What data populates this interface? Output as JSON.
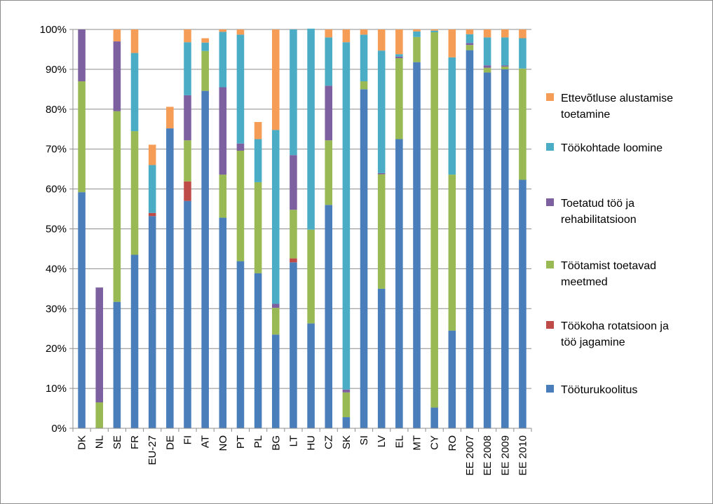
{
  "chart_data": {
    "type": "bar",
    "stacked": true,
    "categories": [
      "DK",
      "NL",
      "SE",
      "FR",
      "EU-27",
      "DE",
      "FI",
      "AT",
      "NO",
      "PT",
      "PL",
      "BG",
      "LT",
      "HU",
      "CZ",
      "SK",
      "SI",
      "LV",
      "EL",
      "MT",
      "CY",
      "RO",
      "EE 2007",
      "EE 2008",
      "EE 2009",
      "EE 2010"
    ],
    "ylim": [
      0,
      100
    ],
    "yticks": [
      "0%",
      "10%",
      "20%",
      "30%",
      "40%",
      "50%",
      "60%",
      "70%",
      "80%",
      "90%",
      "100%"
    ],
    "grid": true,
    "legend_position": "right",
    "series": [
      {
        "name": "Tööturukoolitus",
        "color": "#4a7ebb",
        "values": [
          59.2,
          0,
          31.7,
          43.5,
          53.2,
          75.2,
          57.0,
          84.6,
          52.8,
          41.9,
          38.9,
          23.5,
          41.6,
          26.3,
          56.0,
          2.8,
          85.0,
          35.0,
          72.5,
          91.8,
          5.2,
          24.5,
          94.8,
          89.2,
          90.0,
          62.3
        ]
      },
      {
        "name": "Töökoha rotatsioon ja töö jagamine",
        "color": "#be4b48",
        "values": [
          0,
          0,
          0,
          0,
          0.8,
          0,
          4.9,
          0,
          0,
          0,
          0,
          0,
          1.0,
          0,
          0,
          0,
          0,
          0,
          0,
          0,
          0,
          0,
          0,
          0,
          0,
          0
        ]
      },
      {
        "name": "Töötamist toetavad meetmed",
        "color": "#98b954",
        "values": [
          27.8,
          6.5,
          47.8,
          31.0,
          0,
          0,
          10.3,
          10.0,
          10.8,
          27.7,
          22.8,
          6.7,
          12.2,
          23.5,
          16.2,
          6.2,
          2.0,
          28.7,
          20.3,
          6.3,
          94.1,
          39.1,
          1.3,
          1.2,
          0.7,
          27.9
        ]
      },
      {
        "name": "Toetatud töö ja rehabilitatsioon",
        "color": "#7d60a0",
        "values": [
          13.0,
          28.8,
          17.5,
          0,
          0,
          0,
          11.3,
          0,
          21.9,
          1.8,
          0,
          1.0,
          13.7,
          0,
          13.7,
          0.7,
          0,
          0.3,
          0.4,
          0,
          0,
          0,
          0.5,
          0.6,
          0.3,
          0
        ]
      },
      {
        "name": "Töökohtade loomine",
        "color": "#4bacc6",
        "values": [
          0,
          0,
          0,
          19.6,
          12.0,
          0,
          13.3,
          2.1,
          13.9,
          27.3,
          10.8,
          43.6,
          31.5,
          50.4,
          12.1,
          87.1,
          11.7,
          30.7,
          0.6,
          1.4,
          0.4,
          29.4,
          2.2,
          7.0,
          7.0,
          7.6
        ]
      },
      {
        "name": "Ettevõtluse alustamise toetamine",
        "color": "#f59d56",
        "values": [
          0,
          0,
          3.0,
          5.9,
          5.1,
          5.4,
          3.2,
          1.1,
          0.6,
          1.3,
          4.3,
          25.2,
          0,
          0,
          2.0,
          3.2,
          1.3,
          5.3,
          6.2,
          0.5,
          0.3,
          7.0,
          1.2,
          2.0,
          2.0,
          2.2
        ]
      }
    ]
  },
  "legend": {
    "items": [
      {
        "lines": [
          "Ettevõtluse alustamise",
          "toetamine"
        ],
        "color": "#f59d56"
      },
      {
        "lines": [
          "Töökohtade loomine"
        ],
        "color": "#4bacc6"
      },
      {
        "lines": [
          "Toetatud töö ja",
          "rehabilitatsioon"
        ],
        "color": "#7d60a0"
      },
      {
        "lines": [
          "Töötamist toetavad",
          "meetmed"
        ],
        "color": "#98b954"
      },
      {
        "lines": [
          "Töökoha rotatsioon ja",
          "töö jagamine"
        ],
        "color": "#be4b48"
      },
      {
        "lines": [
          "Tööturukoolitus"
        ],
        "color": "#4a7ebb"
      }
    ]
  }
}
